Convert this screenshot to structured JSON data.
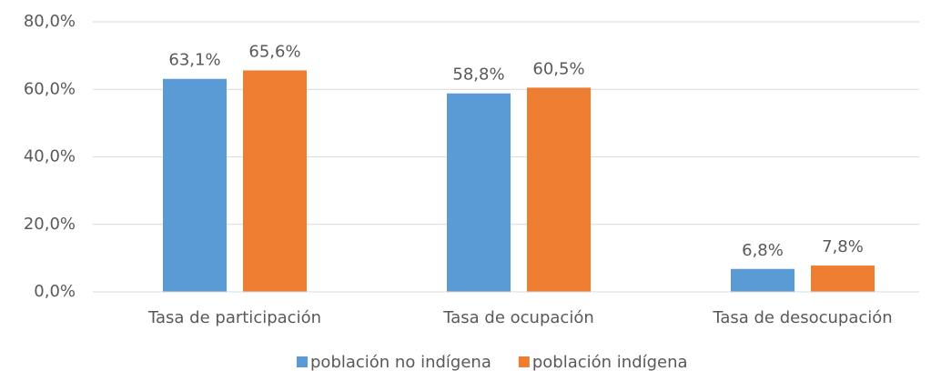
{
  "chart_data": {
    "type": "bar",
    "categories": [
      "Tasa de participación",
      "Tasa de ocupación",
      "Tasa de desocupación"
    ],
    "series": [
      {
        "name": "población no indígena",
        "color": "#5b9bd5",
        "values": [
          63.1,
          58.8,
          6.8
        ],
        "value_labels": [
          "63,1%",
          "58,8%",
          "6,8%"
        ]
      },
      {
        "name": "población indígena",
        "color": "#ed7d31",
        "values": [
          65.6,
          60.5,
          7.8
        ],
        "value_labels": [
          "65,6%",
          "60,5%",
          "7,8%"
        ]
      }
    ],
    "ylim": [
      0,
      80
    ],
    "yticks": [
      {
        "value": 0,
        "label": "0,0%"
      },
      {
        "value": 20,
        "label": "20,0%"
      },
      {
        "value": 40,
        "label": "40,0%"
      },
      {
        "value": 60,
        "label": "60,0%"
      },
      {
        "value": 80,
        "label": "80,0%"
      }
    ],
    "grid": true,
    "legend": "bottom"
  }
}
